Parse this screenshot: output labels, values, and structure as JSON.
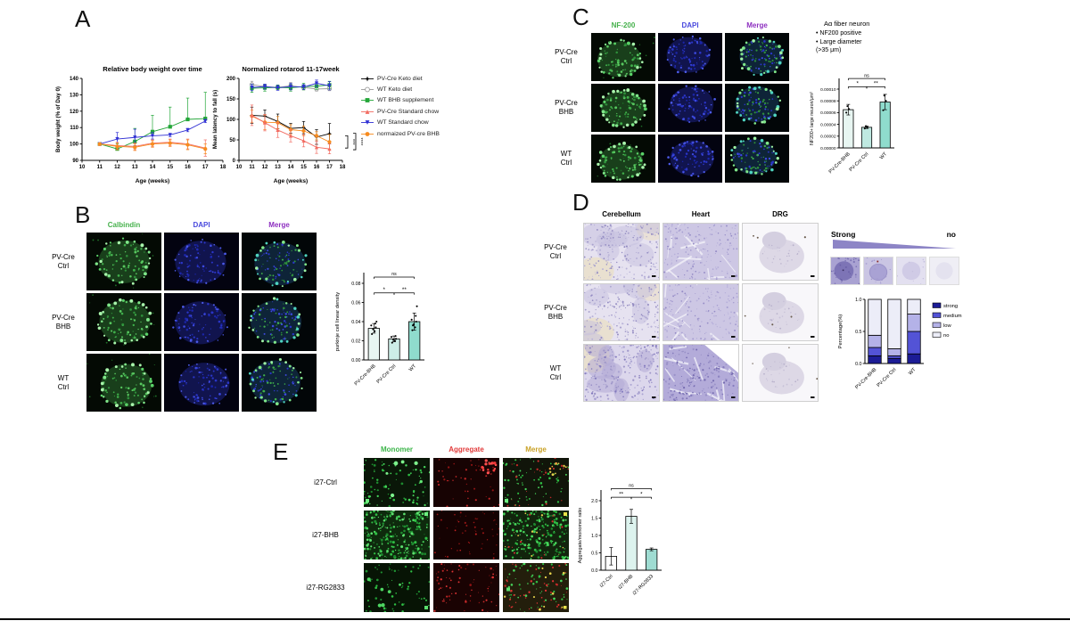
{
  "figure": {
    "background": "#ffffff",
    "bottom_rule_color": "#000000"
  },
  "panels": {
    "A": {
      "label": "A",
      "legend": [
        {
          "label": "PV-Cre Keto diet",
          "color": "#000000",
          "marker": "star"
        },
        {
          "label": "WT Keto diet",
          "color": "#9a9a9a",
          "marker": "circle-open"
        },
        {
          "label": "WT  BHB supplement",
          "color": "#23a638",
          "marker": "square"
        },
        {
          "label": "PV-Cre Standard chow",
          "color": "#f26c62",
          "marker": "triangle"
        },
        {
          "label": "WT Standard chow",
          "color": "#2f2fd4",
          "marker": "triangle-down"
        },
        {
          "label": "normaized PV-cre BHB",
          "color": "#f78b1f",
          "marker": "circle"
        }
      ]
    },
    "B": {
      "label": "B",
      "columns": [
        {
          "label": "Calbindin",
          "color": "#46b14c"
        },
        {
          "label": "DAPI",
          "color": "#4848dd"
        },
        {
          "label": "Merge",
          "color": "#8d2fc0"
        }
      ],
      "rows": [
        {
          "label": "PV-Cre\nCtrl",
          "tiles": [
            "if-green",
            "if-dapi",
            "if-merge"
          ]
        },
        {
          "label": "PV-Cre\nBHB",
          "tiles": [
            "if-green",
            "if-dapi",
            "if-merge"
          ]
        },
        {
          "label": "WT\nCtrl",
          "tiles": [
            "if-green",
            "if-dapi",
            "if-merge"
          ]
        }
      ]
    },
    "C": {
      "label": "C",
      "columns": [
        {
          "label": "NF-200",
          "color": "#46b14c"
        },
        {
          "label": "DAPI",
          "color": "#4848dd"
        },
        {
          "label": "Merge",
          "color": "#8d2fc0"
        }
      ],
      "rows": [
        {
          "label": "PV-Cre\nCtrl",
          "tiles": [
            "if-green",
            "if-dapi",
            "if-merge"
          ]
        },
        {
          "label": "PV-Cre\nBHB",
          "tiles": [
            "if-green",
            "if-dapi",
            "if-merge"
          ]
        },
        {
          "label": "WT\nCtrl",
          "tiles": [
            "if-green",
            "if-dapi",
            "if-merge"
          ]
        }
      ],
      "note": {
        "title": "Aα fiber neuron",
        "bullets": [
          "NF200 positive",
          "Large diameter\n(>35 μm)"
        ]
      }
    },
    "D": {
      "label": "D",
      "columns": [
        {
          "label": "Cerebellum",
          "color": "#000000"
        },
        {
          "label": "Heart",
          "color": "#000000"
        },
        {
          "label": "DRG",
          "color": "#000000"
        }
      ],
      "rows": [
        {
          "label": "PV-Cre\nCtrl",
          "tiles": [
            "histo-cb",
            "histo-heart",
            "histo-drg"
          ]
        },
        {
          "label": "PV-Cre\nBHB",
          "tiles": [
            "histo-cb",
            "histo-heart",
            "histo-drg"
          ]
        },
        {
          "label": "WT\nCtrl",
          "tiles": [
            "histo-cb-dark",
            "histo-heart-dark",
            "histo-drg"
          ]
        }
      ],
      "gradient": {
        "left": "Strong",
        "right": "no",
        "wedge_color": "#8d85c6",
        "tiles": [
          "grad-1",
          "grad-2",
          "grad-3",
          "grad-4"
        ]
      }
    },
    "E": {
      "label": "E",
      "columns": [
        {
          "label": "Monomer",
          "color": "#3cb54a"
        },
        {
          "label": "Aggregate",
          "color": "#e23b3b"
        },
        {
          "label": "Merge",
          "color": "#c9a227"
        }
      ],
      "rows": [
        {
          "label": "i27-Ctrl",
          "tiles": [
            "e-green",
            "e-red-cluster",
            "e-merge-1"
          ]
        },
        {
          "label": "i27-BHB",
          "tiles": [
            "e-green-dense",
            "e-red-dim",
            "e-merge-dense"
          ]
        },
        {
          "label": "i27-RG2833",
          "tiles": [
            "e-green-dim",
            "e-red-med",
            "e-merge-olive"
          ]
        }
      ]
    }
  },
  "chart_data": [
    {
      "id": "body_weight",
      "type": "line",
      "title": "Relative body weight over time",
      "xlabel": "Age (weeks)",
      "ylabel": "Body weight (% of Day 0)",
      "xlim": [
        10,
        18
      ],
      "ylim": [
        90,
        140
      ],
      "xticks": [
        10,
        11,
        12,
        13,
        14,
        15,
        16,
        17,
        18
      ],
      "yticks": [
        90,
        100,
        110,
        120,
        130,
        140
      ],
      "x": [
        11,
        12,
        13,
        14,
        15,
        16,
        17
      ],
      "series": [
        {
          "name": "WT  BHB supplement",
          "color": "#23a638",
          "marker": "square",
          "values": [
            100,
            97,
            101.5,
            107.5,
            110.5,
            115,
            115.5
          ],
          "err": [
            0,
            3,
            8,
            10,
            12,
            13,
            16
          ],
          "err_up_only": true
        },
        {
          "name": "WT Standard chow",
          "color": "#2f2fd4",
          "marker": "triangle-down",
          "values": [
            100,
            103,
            104,
            105,
            105.5,
            108.5,
            114
          ],
          "err": [
            0,
            4,
            5,
            2,
            1,
            1,
            1
          ]
        },
        {
          "name": "PV-Cre Standard chow",
          "color": "#f26c62",
          "marker": "triangle",
          "values": [
            100,
            99,
            98.5,
            100.5,
            101,
            100,
            97.5
          ],
          "err": [
            0,
            2,
            2,
            2,
            2,
            3,
            5
          ]
        },
        {
          "name": "normaized PV-cre BHB",
          "color": "#f78b1f",
          "marker": "circle",
          "values": [
            100,
            98.5,
            98,
            100,
            100.5,
            99.5,
            97
          ],
          "err": [
            0,
            2,
            2,
            2,
            2,
            3,
            3
          ]
        }
      ]
    },
    {
      "id": "rotarod",
      "type": "line",
      "title": "Normalized rotarod 11-17week",
      "xlabel": "Age (weeks)",
      "ylabel": "Mean latency to fall (s)",
      "xlim": [
        10,
        18
      ],
      "ylim": [
        0,
        200
      ],
      "xticks": [
        10,
        11,
        12,
        13,
        14,
        15,
        16,
        17,
        18
      ],
      "yticks": [
        0,
        50,
        100,
        150,
        200
      ],
      "x": [
        11,
        12,
        13,
        14,
        15,
        16,
        17
      ],
      "series": [
        {
          "name": "WT Keto diet",
          "color": "#9a9a9a",
          "marker": "circle-open",
          "values": [
            185,
            180,
            178,
            182,
            178,
            174,
            175
          ],
          "err": [
            8,
            6,
            6,
            8,
            6,
            5,
            5
          ]
        },
        {
          "name": "WT  BHB supplement",
          "color": "#23a638",
          "marker": "square",
          "values": [
            176,
            177,
            178,
            177,
            180,
            181,
            184
          ],
          "err": [
            10,
            8,
            6,
            8,
            8,
            8,
            9
          ]
        },
        {
          "name": "WT Standard chow",
          "color": "#2f2fd4",
          "marker": "triangle-down",
          "values": [
            178,
            180,
            177,
            180,
            179,
            188,
            182
          ],
          "err": [
            8,
            6,
            6,
            8,
            6,
            8,
            10
          ]
        },
        {
          "name": "PV-Cre Keto diet",
          "color": "#000000",
          "marker": "star",
          "values": [
            110,
            108,
            95,
            78,
            80,
            57,
            65
          ],
          "err": [
            20,
            15,
            18,
            12,
            15,
            18,
            25
          ]
        },
        {
          "name": "normaized PV-cre BHB",
          "color": "#f78b1f",
          "marker": "circle",
          "values": [
            108,
            93,
            92,
            75,
            72,
            60,
            45
          ],
          "err": [
            15,
            18,
            15,
            12,
            12,
            10,
            18
          ]
        },
        {
          "name": "PV-Cre Standard chow",
          "color": "#f26c62",
          "marker": "triangle",
          "values": [
            110,
            92,
            74,
            60,
            48,
            32,
            28
          ],
          "err": [
            25,
            20,
            18,
            15,
            15,
            15,
            12
          ]
        }
      ],
      "brackets": [
        {
          "from": 60,
          "to": 30,
          "label": "***"
        },
        {
          "from": 66,
          "to": 26,
          "label": "****"
        }
      ]
    },
    {
      "id": "purkinje_density",
      "type": "bar",
      "ylabel": "purkinje cell linear density",
      "categories": [
        "PV-Cre-BHB",
        "PV-Cre Ctrl",
        "WT"
      ],
      "values": [
        0.033,
        0.022,
        0.04
      ],
      "errors": [
        0.005,
        0.003,
        0.009
      ],
      "ylim": [
        0,
        0.08
      ],
      "yticks": [
        0,
        0.02,
        0.04,
        0.06,
        0.08
      ],
      "ytick_labels": [
        "0.00",
        "0.02",
        "0.04",
        "0.06",
        "0.08"
      ],
      "bar_colors": [
        "#e8f6f2",
        "#cdeee7",
        "#8fdccd"
      ],
      "dots": [
        [
          0.027,
          0.03,
          0.032,
          0.034,
          0.036,
          0.038,
          0.04
        ],
        [
          0.018,
          0.02,
          0.021,
          0.022,
          0.024,
          0.025
        ],
        [
          0.031,
          0.034,
          0.037,
          0.04,
          0.042,
          0.046,
          0.056,
          0.036
        ]
      ],
      "sig": [
        {
          "a": 0,
          "b": 1,
          "label": "*",
          "y": 0.07
        },
        {
          "a": 1,
          "b": 2,
          "label": "**",
          "y": 0.07
        },
        {
          "a": 0,
          "b": 2,
          "label": "ns",
          "y": 0.0865
        }
      ]
    },
    {
      "id": "nf200_large_neurons",
      "type": "bar",
      "ylabel": "NF200+ large neuron/μm²",
      "categories": [
        "PV-Cre-BHB",
        "PV-Cre Ctrl",
        "WT"
      ],
      "values": [
        6.5e-05,
        3.5e-05,
        7.8e-05
      ],
      "errors": [
        9e-06,
        2e-06,
        1.3e-05
      ],
      "ylim": [
        0,
        0.0001
      ],
      "yticks": [
        0,
        2e-05,
        4e-05,
        6e-05,
        8e-05,
        0.0001
      ],
      "ytick_labels": [
        "0.00000",
        "0.00002",
        "0.00004",
        "0.00006",
        "0.00008",
        "0.00010"
      ],
      "bar_colors": [
        "#e8f6f2",
        "#bfe9e1",
        "#8fdccd"
      ],
      "dots": [
        [
          6e-05,
          6.6e-05,
          7.1e-05
        ],
        [
          3.3e-05,
          3.5e-05,
          3.7e-05
        ],
        [
          6.4e-05,
          8e-05,
          8.9e-05
        ]
      ],
      "sig": [
        {
          "a": 0,
          "b": 1,
          "label": "*",
          "y": 0.000104
        },
        {
          "a": 1,
          "b": 2,
          "label": "**",
          "y": 0.000104
        },
        {
          "a": 0,
          "b": 2,
          "label": "ns",
          "y": 0.000118
        }
      ]
    },
    {
      "id": "stain_intensity",
      "type": "stacked_bar",
      "ylabel": "Percentage(%)",
      "categories": [
        "PV-Cre-BHB",
        "PV-Cre Ctrl",
        "WT"
      ],
      "series": [
        {
          "name": "strong",
          "color": "#1c1c96",
          "values": [
            0.12,
            0.08,
            0.15
          ]
        },
        {
          "name": "medium",
          "color": "#5353d6",
          "values": [
            0.13,
            0.04,
            0.35
          ]
        },
        {
          "name": "low",
          "color": "#b4b2e8",
          "values": [
            0.19,
            0.11,
            0.27
          ]
        },
        {
          "name": "no",
          "color": "#ecedf8",
          "values": [
            0.56,
            0.77,
            0.23
          ]
        }
      ],
      "ylim": [
        0,
        1
      ],
      "yticks": [
        0,
        0.5,
        1
      ],
      "ytick_labels": [
        "0.0",
        "0.5",
        "1.0"
      ],
      "legend_position": "right"
    },
    {
      "id": "aggregate_monomer_ratio",
      "type": "bar",
      "ylabel": "Aggregate/monomer ratio",
      "categories": [
        "i27-Ctrl",
        "i27-BHB",
        "i27-RG2833"
      ],
      "values": [
        0.4,
        1.55,
        0.6
      ],
      "errors": [
        0.25,
        0.2,
        0.04
      ],
      "ylim": [
        0,
        2
      ],
      "yticks": [
        0,
        0.5,
        1,
        1.5,
        2
      ],
      "ytick_labels": [
        "0.0",
        "0.5",
        "1.0",
        "1.5",
        "2.0"
      ],
      "bar_colors": [
        "#ffffff",
        "#ddf3ee",
        "#9fdcd2"
      ],
      "dots": [],
      "sig": [
        {
          "a": 0,
          "b": 1,
          "label": "**",
          "y": 2.1
        },
        {
          "a": 1,
          "b": 2,
          "label": "*",
          "y": 2.1
        },
        {
          "a": 0,
          "b": 2,
          "label": "ns",
          "y": 2.35
        }
      ]
    }
  ]
}
